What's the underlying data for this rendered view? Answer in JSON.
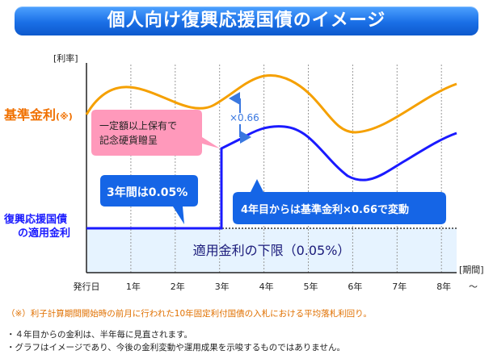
{
  "title": "個人向け復興応援国債のイメージ",
  "chart_data": {
    "type": "line",
    "ylabel": "[利率]",
    "xlabel": "[期間]",
    "x_categories": [
      "発行日",
      "1年",
      "2年",
      "3年",
      "4年",
      "5年",
      "6年",
      "7年",
      "8年"
    ],
    "x_suffix": "～",
    "series": [
      {
        "name": "基準金利(※)",
        "name_main": "基準金利",
        "name_note": "(※)",
        "color": "#f5a000"
      },
      {
        "name": "復興応援国債の適用金利",
        "name_line1": "復興応援国債",
        "name_line2": "の適用金利",
        "color": "#1a1aff"
      }
    ],
    "floor_label": "適用金利の下限（0.05%）",
    "annotations": {
      "multiplier": "×0.66",
      "gift": [
        "一定額以上保有で",
        "記念硬貨贈呈"
      ],
      "first_three_years": "3年間は0.05%",
      "from_year4": "4年目からは基準金利×0.66で変動"
    },
    "colors": {
      "title_bar": "#1a6fe6",
      "base_line": "#f5a000",
      "applied_line": "#1a1aff",
      "floor_band": "#e6f3ff",
      "gift_callout": "#ff99bb"
    }
  },
  "notes": {
    "main": "（※）利子計算期間開始時の前月に行われた10年固定利付国債の入札における平均落札利回り。",
    "bullets": [
      "・４年目からの金利は、半年毎に見直されます。",
      "・グラフはイメージであり、今後の金利変動や運用成果を示唆するものではありません。"
    ]
  }
}
